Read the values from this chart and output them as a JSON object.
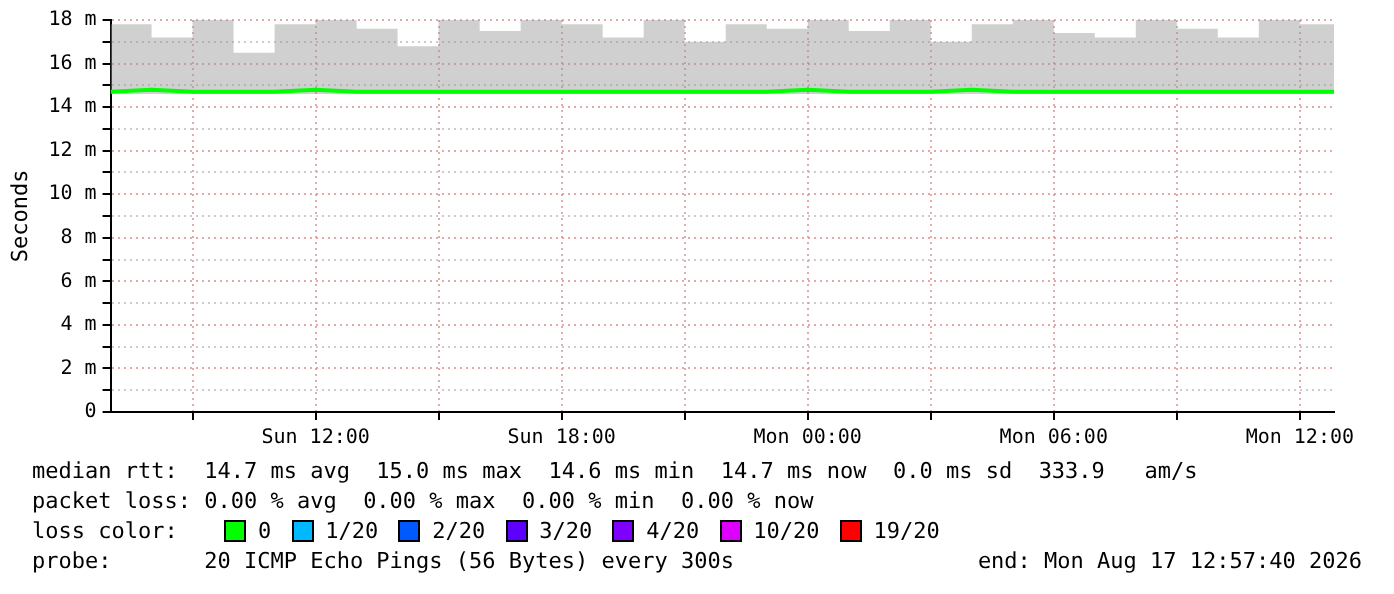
{
  "chart_data": {
    "type": "line",
    "ylabel": "Seconds",
    "x": [
      "2026-08-16T07:00",
      "2026-08-16T08:00",
      "2026-08-16T09:00",
      "2026-08-16T10:00",
      "2026-08-16T11:00",
      "2026-08-16T12:00",
      "2026-08-16T13:00",
      "2026-08-16T14:00",
      "2026-08-16T15:00",
      "2026-08-16T16:00",
      "2026-08-16T17:00",
      "2026-08-16T18:00",
      "2026-08-16T19:00",
      "2026-08-16T20:00",
      "2026-08-16T21:00",
      "2026-08-16T22:00",
      "2026-08-16T23:00",
      "2026-08-17T00:00",
      "2026-08-17T01:00",
      "2026-08-17T02:00",
      "2026-08-17T03:00",
      "2026-08-17T04:00",
      "2026-08-17T05:00",
      "2026-08-17T06:00",
      "2026-08-17T07:00",
      "2026-08-17T08:00",
      "2026-08-17T09:00",
      "2026-08-17T10:00",
      "2026-08-17T11:00",
      "2026-08-17T12:00",
      "2026-08-17T12:50"
    ],
    "series": [
      {
        "name": "0",
        "color": "#00ff00",
        "values": [
          14.7,
          14.8,
          14.7,
          14.7,
          14.7,
          14.8,
          14.7,
          14.7,
          14.7,
          14.7,
          14.7,
          14.7,
          14.7,
          14.7,
          14.7,
          14.7,
          14.7,
          14.8,
          14.7,
          14.7,
          14.7,
          14.8,
          14.7,
          14.7,
          14.7,
          14.7,
          14.7,
          14.7,
          14.7,
          14.7,
          14.7
        ],
        "lower": [
          14.6,
          14.6,
          14.6,
          14.6,
          14.6,
          14.6,
          14.6,
          14.6,
          14.6,
          14.6,
          14.6,
          14.6,
          14.6,
          14.6,
          14.6,
          14.6,
          14.6,
          14.6,
          14.6,
          14.6,
          14.6,
          14.6,
          14.6,
          14.6,
          14.6,
          14.6,
          14.6,
          14.6,
          14.6,
          14.6,
          14.6
        ],
        "upper": [
          17.8,
          17.2,
          18.0,
          16.5,
          17.8,
          18.0,
          17.6,
          16.8,
          18.0,
          17.5,
          18.0,
          17.8,
          17.2,
          18.0,
          17.0,
          17.8,
          17.6,
          18.0,
          17.5,
          18.0,
          17.0,
          17.8,
          18.0,
          17.4,
          17.2,
          18.0,
          17.6,
          17.2,
          18.0,
          17.8,
          17.4
        ]
      },
      {
        "name": "1/20",
        "color": "#00b8ff",
        "values": [
          null,
          null,
          null,
          null,
          null,
          null,
          null,
          null,
          null,
          null,
          null,
          null,
          null,
          null,
          null,
          null,
          null,
          null,
          null,
          null,
          null,
          null,
          null,
          null,
          null,
          null,
          null,
          null,
          null,
          null,
          null
        ]
      },
      {
        "name": "2/20",
        "color": "#0059ff",
        "values": [
          null,
          null,
          null,
          null,
          null,
          null,
          null,
          null,
          null,
          null,
          null,
          null,
          null,
          null,
          null,
          null,
          null,
          null,
          null,
          null,
          null,
          null,
          null,
          null,
          null,
          null,
          null,
          null,
          null,
          null,
          null
        ]
      },
      {
        "name": "3/20",
        "color": "#5e00ff",
        "values": [
          null,
          null,
          null,
          null,
          null,
          null,
          null,
          null,
          null,
          null,
          null,
          null,
          null,
          null,
          null,
          null,
          null,
          null,
          null,
          null,
          null,
          null,
          null,
          null,
          null,
          null,
          null,
          null,
          null,
          null,
          null
        ]
      },
      {
        "name": "4/20",
        "color": "#7e00ff",
        "values": [
          null,
          null,
          null,
          null,
          null,
          null,
          null,
          null,
          null,
          null,
          null,
          null,
          null,
          null,
          null,
          null,
          null,
          null,
          null,
          null,
          null,
          null,
          null,
          null,
          null,
          null,
          null,
          null,
          null,
          null,
          null
        ]
      },
      {
        "name": "10/20",
        "color": "#dd00ff",
        "values": [
          null,
          null,
          null,
          null,
          null,
          null,
          null,
          null,
          null,
          null,
          null,
          null,
          null,
          null,
          null,
          null,
          null,
          null,
          null,
          null,
          null,
          null,
          null,
          null,
          null,
          null,
          null,
          null,
          null,
          null,
          null
        ]
      },
      {
        "name": "19/20",
        "color": "#ff0000",
        "values": [
          null,
          null,
          null,
          null,
          null,
          null,
          null,
          null,
          null,
          null,
          null,
          null,
          null,
          null,
          null,
          null,
          null,
          null,
          null,
          null,
          null,
          null,
          null,
          null,
          null,
          null,
          null,
          null,
          null,
          null,
          null
        ]
      }
    ],
    "xlim": [
      "2026-08-16T07:00",
      "2026-08-17T12:50"
    ],
    "xticks": [
      {
        "value": "2026-08-16T09:00",
        "label": null
      },
      {
        "value": "2026-08-16T12:00",
        "label": "Sun 12:00"
      },
      {
        "value": "2026-08-16T15:00",
        "label": null
      },
      {
        "value": "2026-08-16T18:00",
        "label": "Sun 18:00"
      },
      {
        "value": "2026-08-16T21:00",
        "label": null
      },
      {
        "value": "2026-08-17T00:00",
        "label": "Mon 00:00"
      },
      {
        "value": "2026-08-17T03:00",
        "label": null
      },
      {
        "value": "2026-08-17T06:00",
        "label": "Mon 06:00"
      },
      {
        "value": "2026-08-17T09:00",
        "label": null
      },
      {
        "value": "2026-08-17T12:00",
        "label": "Mon 12:00"
      }
    ],
    "ylim": [
      0,
      18
    ],
    "yticks": [
      0,
      {
        "value": 1,
        "label": null
      },
      {
        "value": 2,
        "label": "2 m"
      },
      {
        "value": 3,
        "label": null
      },
      {
        "value": 4,
        "label": "4 m"
      },
      {
        "value": 5,
        "label": null
      },
      {
        "value": 6,
        "label": "6 m"
      },
      {
        "value": 7,
        "label": null
      },
      {
        "value": 8,
        "label": "8 m"
      },
      {
        "value": 9,
        "label": null
      },
      {
        "value": 10,
        "label": "10 m"
      },
      {
        "value": 11,
        "label": null
      },
      {
        "value": 12,
        "label": "12 m"
      },
      {
        "value": 13,
        "label": null
      },
      {
        "value": 14,
        "label": "14 m"
      },
      {
        "value": 15,
        "label": null
      },
      {
        "value": 16,
        "label": "16 m"
      },
      {
        "value": 17,
        "label": null
      },
      {
        "value": 18,
        "label": "18 m"
      }
    ],
    "grid": true,
    "legend": "bottom",
    "legend_title": "loss color:",
    "marker": "none",
    "line_style": "solid",
    "annotations": [
      "median rtt:  14.7 ms avg  15.0 ms max  14.6 ms min  14.7 ms now  0.0 ms sd  333.9   am/s",
      "packet loss: 0.00 % avg  0.00 % max  0.00 % min  0.00 % now",
      "probe:       20 ICMP Echo Pings (56 Bytes) every 300s",
      "end: Mon Aug 17 12:57:40 2026"
    ]
  }
}
